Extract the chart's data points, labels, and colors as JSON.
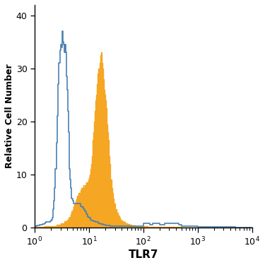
{
  "xlabel": "TLR7",
  "ylabel": "Relative Cell Number",
  "xlim_log": [
    1.0,
    10000.0
  ],
  "ylim": [
    0,
    42
  ],
  "yticks": [
    0,
    10,
    20,
    30,
    40
  ],
  "ytick_labels": [
    "0",
    "10",
    "20",
    "30",
    "40"
  ],
  "blue_color": "#4a80b0",
  "orange_color": "#f5a623",
  "background_color": "#ffffff",
  "figsize": [
    3.75,
    3.75
  ],
  "dpi": 100,
  "blue_x": [
    1.0,
    1.05,
    1.1,
    1.15,
    1.2,
    1.25,
    1.3,
    1.35,
    1.4,
    1.45,
    1.5,
    1.55,
    1.6,
    1.65,
    1.7,
    1.75,
    1.8,
    1.85,
    1.9,
    1.95,
    2.0,
    2.05,
    2.1,
    2.15,
    2.2,
    2.25,
    2.3,
    2.4,
    2.5,
    2.6,
    2.7,
    2.8,
    2.9,
    3.0,
    3.1,
    3.2,
    3.3,
    3.4,
    3.5,
    3.6,
    3.7,
    3.8,
    3.9,
    4.0,
    4.1,
    4.2,
    4.3,
    4.4,
    4.5,
    4.6,
    4.7,
    4.8,
    5.0,
    5.2,
    5.5,
    5.8,
    6.0,
    6.5,
    7.0,
    7.5,
    8.0,
    8.5,
    9.0,
    9.5,
    10.0,
    10.5,
    11.0,
    12.0,
    13.0,
    14.0,
    15.0,
    16.0,
    18.0,
    20.0,
    25.0,
    30.0,
    40.0,
    50.0,
    70.0,
    100.0,
    130.0,
    150.0,
    170.0,
    200.0,
    250.0,
    300.0,
    400.0,
    450.0,
    500.0,
    600.0,
    800.0,
    1000.0,
    2000.0,
    5000.0,
    10000.0
  ],
  "blue_y": [
    0.3,
    0.3,
    0.3,
    0.4,
    0.4,
    0.4,
    0.5,
    0.5,
    0.5,
    0.6,
    0.7,
    0.8,
    0.9,
    1.0,
    1.0,
    1.0,
    1.0,
    1.0,
    1.0,
    1.1,
    1.2,
    1.3,
    1.5,
    1.8,
    2.5,
    3.5,
    5.0,
    7.5,
    11.0,
    16.0,
    21.0,
    27.0,
    31.0,
    33.5,
    34.5,
    34.0,
    37.0,
    35.0,
    34.5,
    33.0,
    34.5,
    33.0,
    31.0,
    28.5,
    26.0,
    22.0,
    18.0,
    14.0,
    11.0,
    9.0,
    7.5,
    6.5,
    5.5,
    5.0,
    4.5,
    4.5,
    4.5,
    4.5,
    4.5,
    4.0,
    3.8,
    3.5,
    3.0,
    2.5,
    2.0,
    1.8,
    1.5,
    1.3,
    1.2,
    1.0,
    1.0,
    0.8,
    0.7,
    0.5,
    0.4,
    0.3,
    0.3,
    0.2,
    0.2,
    0.2,
    0.8,
    0.5,
    0.8,
    0.8,
    0.5,
    0.8,
    0.8,
    0.8,
    0.5,
    0.2,
    0.2,
    0.2,
    0.1,
    0.1,
    0.0
  ],
  "orange_x": [
    1.0,
    1.5,
    2.0,
    2.5,
    3.0,
    3.5,
    4.0,
    4.2,
    4.4,
    4.6,
    4.8,
    5.0,
    5.2,
    5.4,
    5.6,
    5.8,
    6.0,
    6.2,
    6.4,
    6.6,
    6.8,
    7.0,
    7.2,
    7.4,
    7.6,
    7.8,
    8.0,
    8.2,
    8.4,
    8.6,
    8.8,
    9.0,
    9.2,
    9.4,
    9.6,
    9.8,
    10.0,
    10.2,
    10.4,
    10.6,
    10.8,
    11.0,
    11.2,
    11.5,
    11.8,
    12.0,
    12.3,
    12.6,
    13.0,
    13.5,
    14.0,
    14.5,
    15.0,
    15.5,
    16.0,
    16.5,
    17.0,
    17.5,
    18.0,
    18.5,
    19.0,
    19.5,
    20.0,
    20.5,
    21.0,
    21.5,
    22.0,
    22.5,
    23.0,
    23.5,
    24.0,
    24.5,
    25.0,
    26.0,
    27.0,
    28.0,
    29.0,
    30.0,
    32.0,
    34.0,
    36.0,
    38.0,
    40.0,
    43.0,
    46.0,
    50.0,
    55.0,
    60.0,
    70.0,
    80.0,
    90.0,
    100.0,
    120.0,
    150.0,
    200.0,
    300.0,
    400.0,
    500.0,
    1000.0,
    3000.0,
    10000.0
  ],
  "orange_y": [
    0.0,
    0.1,
    0.2,
    0.3,
    0.5,
    0.8,
    1.2,
    1.5,
    1.8,
    2.0,
    2.5,
    3.0,
    3.5,
    4.0,
    4.5,
    5.0,
    5.5,
    6.0,
    5.5,
    6.5,
    6.0,
    6.5,
    7.0,
    7.5,
    6.5,
    7.5,
    8.0,
    7.0,
    7.5,
    8.0,
    7.5,
    8.5,
    8.0,
    8.5,
    8.0,
    8.5,
    9.0,
    9.5,
    10.0,
    9.5,
    10.5,
    11.0,
    12.0,
    13.5,
    15.0,
    16.5,
    18.0,
    20.0,
    22.0,
    24.0,
    25.0,
    27.0,
    29.0,
    30.0,
    31.0,
    32.5,
    33.0,
    31.0,
    30.0,
    29.0,
    28.0,
    26.0,
    25.0,
    24.0,
    22.5,
    21.0,
    19.5,
    18.0,
    16.5,
    15.0,
    13.5,
    12.0,
    10.5,
    9.0,
    7.5,
    6.5,
    5.5,
    4.5,
    3.5,
    2.8,
    2.2,
    1.8,
    1.5,
    1.2,
    1.0,
    0.8,
    0.6,
    0.5,
    0.4,
    0.3,
    0.2,
    0.2,
    0.2,
    0.1,
    0.1,
    0.1,
    0.1,
    0.1,
    0.0,
    0.0,
    0.0
  ]
}
